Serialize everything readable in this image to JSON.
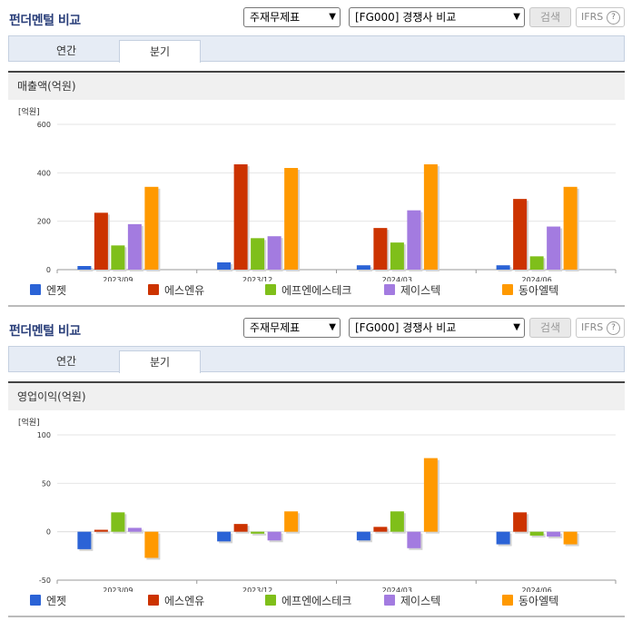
{
  "colors": {
    "entzet": "#2b63d6",
    "esenyu": "#cc3300",
    "fpn": "#7fbf1a",
    "zeiss": "#a37be0",
    "donga": "#ff9900"
  },
  "panels": [
    {
      "title": "펀더멘털 비교",
      "select1": "주재무제표",
      "select2": "[FG000] 경쟁사 비교",
      "search_label": "검색",
      "ifrs_label": "IFRS",
      "ifrs_help_icon": "?",
      "tabs": [
        "연간",
        "분기"
      ],
      "active_tab": 1,
      "chart_title": "매출액(억원)",
      "unit_label": "[억원]"
    },
    {
      "title": "펀더멘털 비교",
      "select1": "주재무제표",
      "select2": "[FG000] 경쟁사 비교",
      "search_label": "검색",
      "ifrs_label": "IFRS",
      "ifrs_help_icon": "?",
      "tabs": [
        "연간",
        "분기"
      ],
      "active_tab": 1,
      "chart_title": "영업이익(억원)",
      "unit_label": "[억원]"
    }
  ],
  "chart_data": [
    {
      "type": "bar",
      "title": "매출액(억원)",
      "ylabel": "[억원]",
      "ylim": [
        0,
        600
      ],
      "yticks": [
        0,
        200,
        400,
        600
      ],
      "categories": [
        "2023/09",
        "2023/12",
        "2024/03",
        "2024/06"
      ],
      "legend_position": "bottom",
      "series": [
        {
          "name": "엔젯",
          "color": "#2b63d6",
          "values": [
            15,
            30,
            18,
            18
          ]
        },
        {
          "name": "에스엔유",
          "color": "#cc3300",
          "values": [
            235,
            435,
            172,
            292
          ]
        },
        {
          "name": "에프엔에스테크",
          "color": "#7fbf1a",
          "values": [
            100,
            130,
            112,
            55
          ]
        },
        {
          "name": "제이스텍",
          "color": "#a37be0",
          "values": [
            188,
            138,
            245,
            178
          ]
        },
        {
          "name": "동아엘텍",
          "color": "#ff9900",
          "values": [
            342,
            420,
            435,
            342
          ]
        }
      ]
    },
    {
      "type": "bar",
      "title": "영업이익(억원)",
      "ylabel": "[억원]",
      "ylim": [
        -50,
        100
      ],
      "yticks": [
        -50,
        0,
        50,
        100
      ],
      "categories": [
        "2023/09",
        "2023/12",
        "2024/03",
        "2024/06"
      ],
      "legend_position": "bottom",
      "series": [
        {
          "name": "엔젯",
          "color": "#2b63d6",
          "values": [
            -18,
            -10,
            -9,
            -13
          ]
        },
        {
          "name": "에스엔유",
          "color": "#cc3300",
          "values": [
            2,
            8,
            5,
            20
          ]
        },
        {
          "name": "에프엔에스테크",
          "color": "#7fbf1a",
          "values": [
            20,
            -2,
            21,
            -4
          ]
        },
        {
          "name": "제이스텍",
          "color": "#a37be0",
          "values": [
            4,
            -9,
            -17,
            -5
          ]
        },
        {
          "name": "동아엘텍",
          "color": "#ff9900",
          "values": [
            -27,
            21,
            76,
            -13
          ]
        }
      ]
    }
  ]
}
